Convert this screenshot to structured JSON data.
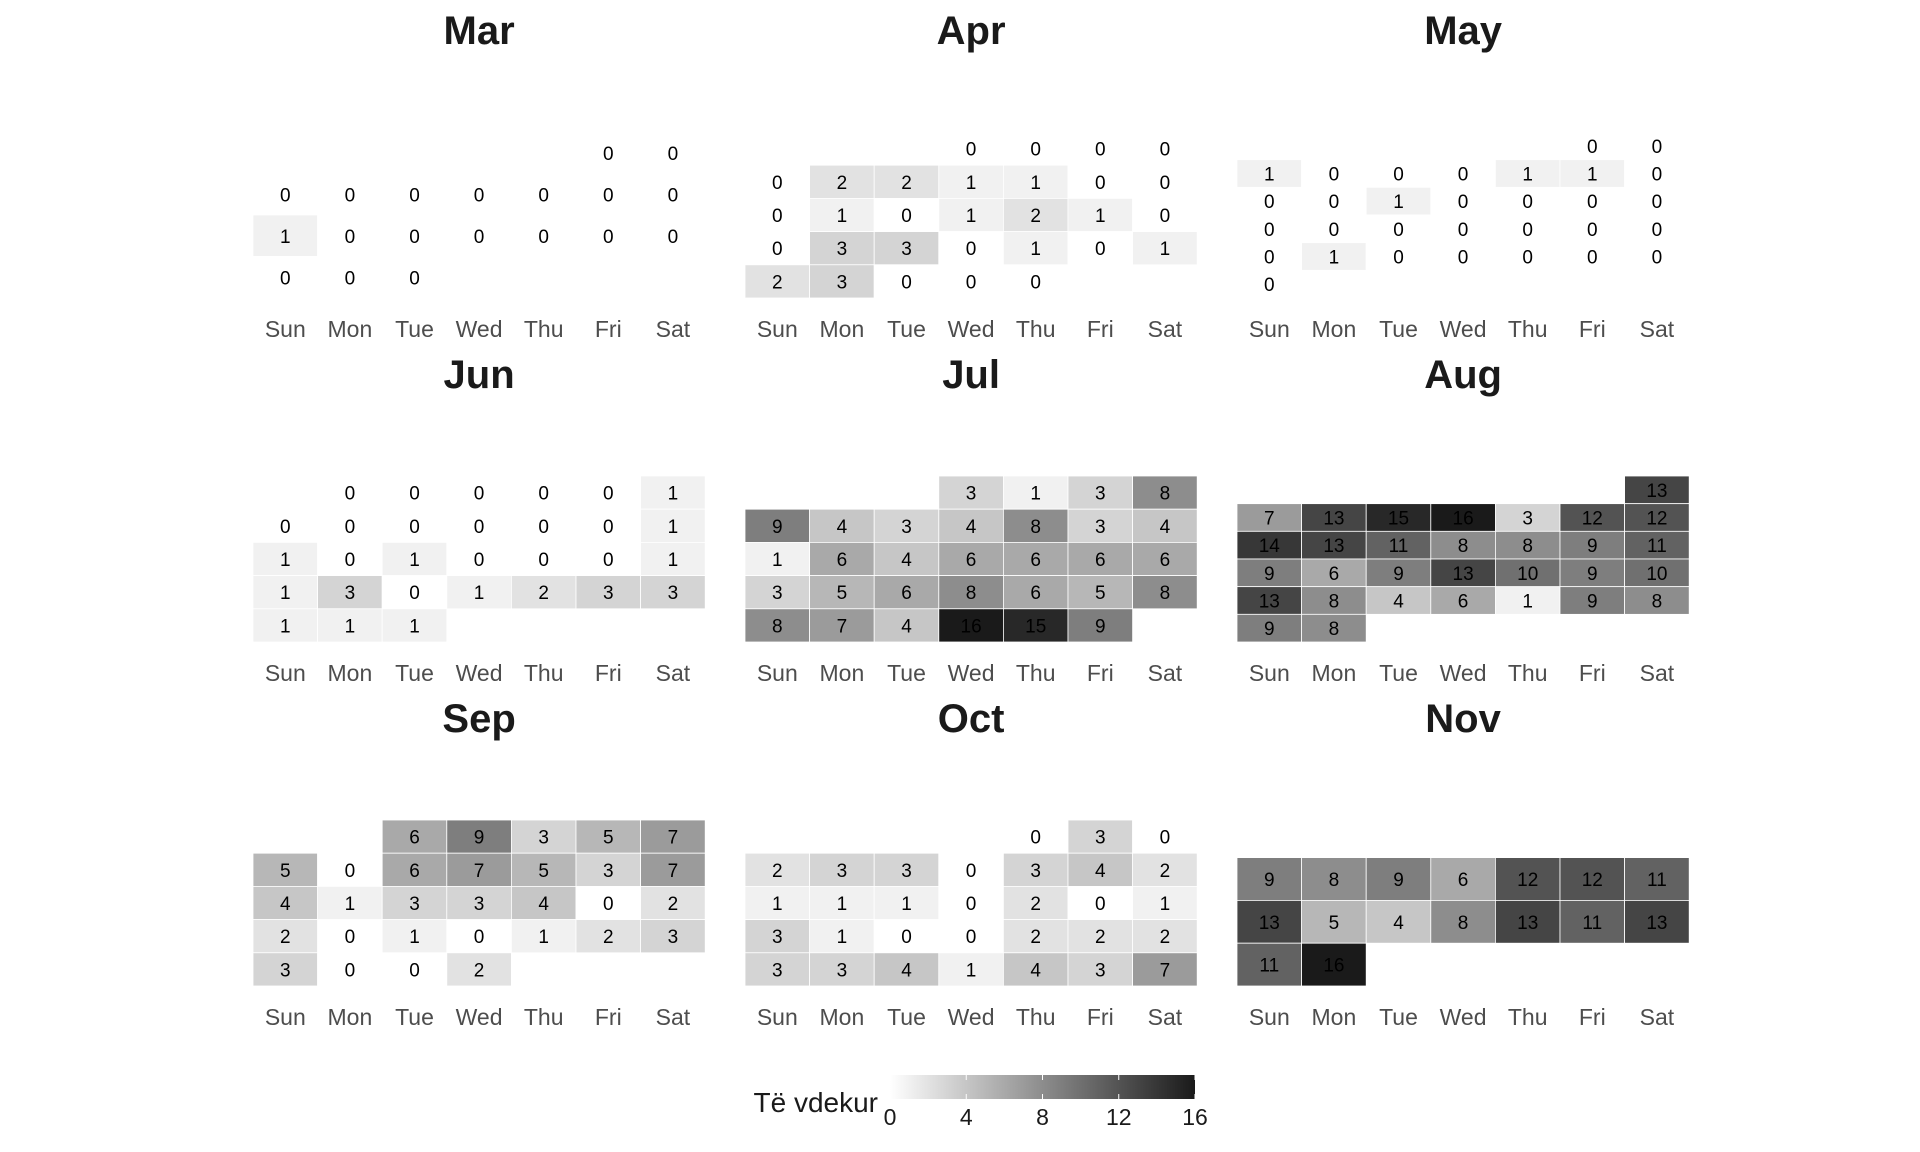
{
  "chart_data": {
    "type": "heatmap",
    "subtype": "calendar",
    "weekdays": [
      "Sun",
      "Mon",
      "Tue",
      "Wed",
      "Thu",
      "Fri",
      "Sat"
    ],
    "legend": {
      "title": "Të vdekur",
      "ticks": [
        0,
        4,
        8,
        12,
        16
      ],
      "range": [
        0,
        16
      ],
      "color_low": "#ffffff",
      "color_high": "#1a1a1a",
      "placement": "bottom"
    },
    "months": [
      {
        "name": "Mar",
        "weeks": [
          [
            null,
            null,
            null,
            null,
            null,
            0,
            0
          ],
          [
            0,
            0,
            0,
            0,
            0,
            0,
            0
          ],
          [
            1,
            0,
            0,
            0,
            0,
            0,
            0
          ],
          [
            0,
            0,
            0,
            null,
            null,
            null,
            null
          ]
        ]
      },
      {
        "name": "Apr",
        "weeks": [
          [
            null,
            null,
            null,
            0,
            0,
            0,
            0
          ],
          [
            0,
            2,
            2,
            1,
            1,
            0,
            0
          ],
          [
            0,
            1,
            0,
            1,
            2,
            1,
            0
          ],
          [
            0,
            3,
            3,
            0,
            1,
            0,
            1
          ],
          [
            2,
            3,
            0,
            0,
            0,
            null,
            null
          ]
        ]
      },
      {
        "name": "May",
        "weeks": [
          [
            null,
            null,
            null,
            null,
            null,
            0,
            0
          ],
          [
            1,
            0,
            0,
            0,
            1,
            1,
            0
          ],
          [
            0,
            0,
            1,
            0,
            0,
            0,
            0
          ],
          [
            0,
            0,
            0,
            0,
            0,
            0,
            0
          ],
          [
            0,
            1,
            0,
            0,
            0,
            0,
            0
          ],
          [
            0,
            null,
            null,
            null,
            null,
            null,
            null
          ]
        ]
      },
      {
        "name": "Jun",
        "weeks": [
          [
            null,
            0,
            0,
            0,
            0,
            0,
            1
          ],
          [
            0,
            0,
            0,
            0,
            0,
            0,
            1
          ],
          [
            1,
            0,
            1,
            0,
            0,
            0,
            1
          ],
          [
            1,
            3,
            0,
            1,
            2,
            3,
            3
          ],
          [
            1,
            1,
            1,
            null,
            null,
            null,
            null
          ]
        ]
      },
      {
        "name": "Jul",
        "weeks": [
          [
            null,
            null,
            null,
            3,
            1,
            3,
            8
          ],
          [
            9,
            4,
            3,
            4,
            8,
            3,
            4
          ],
          [
            1,
            6,
            4,
            6,
            6,
            6,
            6
          ],
          [
            3,
            5,
            6,
            8,
            6,
            5,
            8
          ],
          [
            8,
            7,
            4,
            16,
            15,
            9,
            null
          ]
        ]
      },
      {
        "name": "Aug",
        "weeks": [
          [
            null,
            null,
            null,
            null,
            null,
            null,
            13
          ],
          [
            7,
            13,
            15,
            16,
            3,
            12,
            12
          ],
          [
            14,
            13,
            11,
            8,
            8,
            9,
            11
          ],
          [
            9,
            6,
            9,
            13,
            10,
            9,
            10
          ],
          [
            13,
            8,
            4,
            6,
            1,
            9,
            8
          ],
          [
            9,
            8,
            null,
            null,
            null,
            null,
            null
          ]
        ]
      },
      {
        "name": "Sep",
        "weeks": [
          [
            null,
            null,
            6,
            9,
            3,
            5,
            7
          ],
          [
            5,
            0,
            6,
            7,
            5,
            3,
            7
          ],
          [
            4,
            1,
            3,
            3,
            4,
            0,
            2
          ],
          [
            2,
            0,
            1,
            0,
            1,
            2,
            3
          ],
          [
            3,
            0,
            0,
            2,
            null,
            null,
            null
          ]
        ]
      },
      {
        "name": "Oct",
        "weeks": [
          [
            null,
            null,
            null,
            null,
            0,
            3,
            0
          ],
          [
            2,
            3,
            3,
            0,
            3,
            4,
            2
          ],
          [
            1,
            1,
            1,
            0,
            2,
            0,
            1
          ],
          [
            3,
            1,
            0,
            0,
            2,
            2,
            2
          ],
          [
            3,
            3,
            4,
            1,
            4,
            3,
            7
          ]
        ]
      },
      {
        "name": "Nov",
        "weeks": [
          [
            9,
            8,
            9,
            6,
            12,
            12,
            11
          ],
          [
            13,
            5,
            4,
            8,
            13,
            11,
            13
          ],
          [
            11,
            16,
            null,
            null,
            null,
            null,
            null
          ]
        ]
      }
    ]
  }
}
